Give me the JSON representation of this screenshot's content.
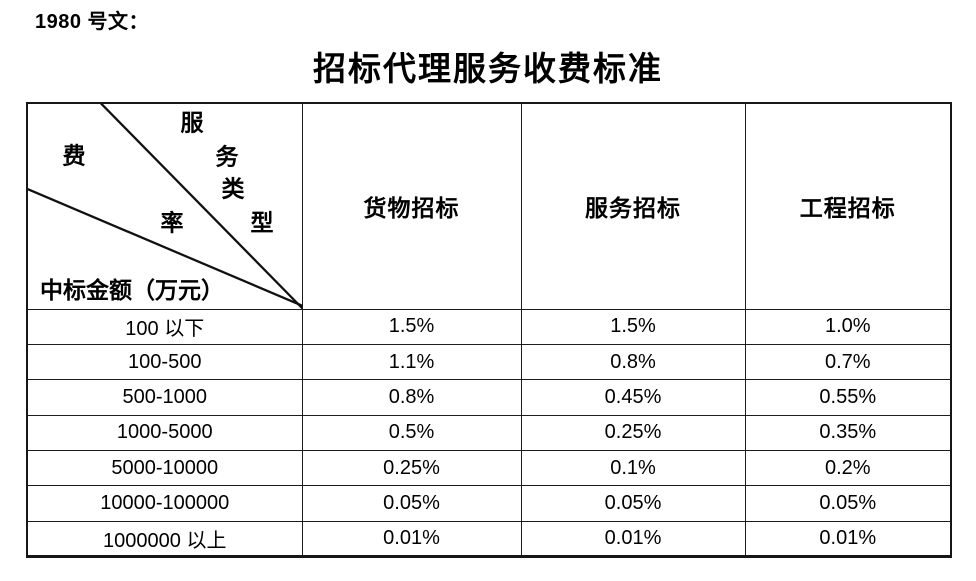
{
  "page": {
    "doc_ref": "1980 号文：",
    "title": "招标代理服务收费标准"
  },
  "table": {
    "corner": {
      "service_type_chars": [
        "服",
        "务",
        "类",
        "型"
      ],
      "fee_rate_chars": [
        "费",
        "率"
      ],
      "amount_label": "中标金额（万元）"
    },
    "column_headers": [
      "货物招标",
      "服务招标",
      "工程招标"
    ],
    "rows": [
      {
        "label": "100 以下",
        "values": [
          "1.5%",
          "1.5%",
          "1.0%"
        ]
      },
      {
        "label": "100-500",
        "values": [
          "1.1%",
          "0.8%",
          "0.7%"
        ]
      },
      {
        "label": "500-1000",
        "values": [
          "0.8%",
          "0.45%",
          "0.55%"
        ]
      },
      {
        "label": "1000-5000",
        "values": [
          "0.5%",
          "0.25%",
          "0.35%"
        ]
      },
      {
        "label": "5000-10000",
        "values": [
          "0.25%",
          "0.1%",
          "0.2%"
        ]
      },
      {
        "label": "10000-100000",
        "values": [
          "0.05%",
          "0.05%",
          "0.05%"
        ]
      },
      {
        "label": "1000000 以上",
        "values": [
          "0.01%",
          "0.01%",
          "0.01%"
        ]
      }
    ]
  },
  "colors": {
    "background": "#ffffff",
    "text": "#000000",
    "border": "#1c1c1c"
  }
}
